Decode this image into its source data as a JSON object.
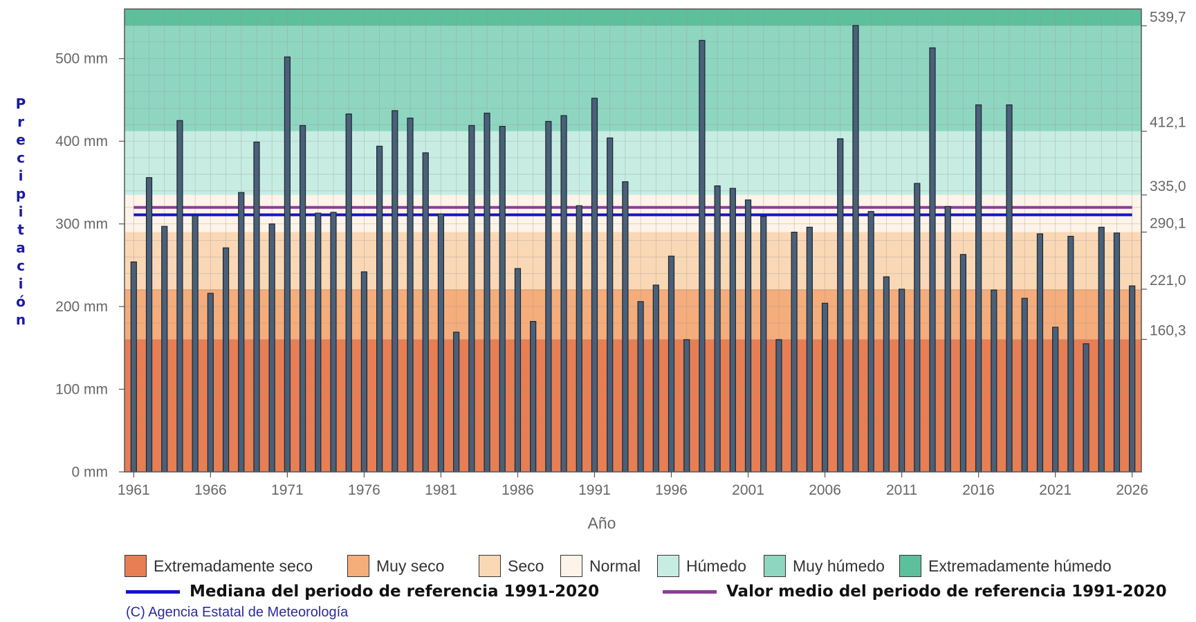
{
  "chart_data": {
    "type": "bar",
    "xlabel": "Año",
    "ylabel": "Precipitación",
    "ylim": [
      0,
      560
    ],
    "xlim": [
      1960.4,
      2026.6
    ],
    "y_ticks": [
      0,
      100,
      200,
      300,
      400,
      500
    ],
    "y_tick_labels": [
      "0 mm",
      "100 mm",
      "200 mm",
      "300 mm",
      "400 mm",
      "500 mm"
    ],
    "x_ticks": [
      1961,
      1966,
      1971,
      1976,
      1981,
      1986,
      1991,
      1996,
      2001,
      2006,
      2011,
      2016,
      2021,
      2026
    ],
    "x_tick_labels": [
      "1961",
      "1966",
      "1971",
      "1976",
      "1981",
      "1986",
      "1991",
      "1996",
      "2001",
      "2006",
      "2011",
      "2016",
      "2021",
      "2026"
    ],
    "right_axis_values": [
      160.3,
      221.0,
      290.1,
      335.0,
      412.1,
      539.7
    ],
    "right_axis_labels": [
      "160,3",
      "221,0",
      "290,1",
      "335,0",
      "412,1",
      "539,7"
    ],
    "categories": [
      1961,
      1962,
      1963,
      1964,
      1965,
      1966,
      1967,
      1968,
      1969,
      1970,
      1971,
      1972,
      1973,
      1974,
      1975,
      1976,
      1977,
      1978,
      1979,
      1980,
      1981,
      1982,
      1983,
      1984,
      1985,
      1986,
      1987,
      1988,
      1989,
      1990,
      1991,
      1992,
      1993,
      1994,
      1995,
      1996,
      1997,
      1998,
      1999,
      2000,
      2001,
      2002,
      2003,
      2004,
      2005,
      2006,
      2007,
      2008,
      2009,
      2010,
      2011,
      2012,
      2013,
      2014,
      2015,
      2016,
      2017,
      2018,
      2019,
      2020,
      2021,
      2022,
      2023,
      2024,
      2025,
      2026
    ],
    "values": [
      254,
      356,
      297,
      425,
      310,
      216,
      271,
      338,
      399,
      300,
      502,
      419,
      313,
      314,
      433,
      242,
      394,
      437,
      428,
      386,
      312,
      169,
      419,
      434,
      418,
      246,
      182,
      424,
      431,
      322,
      452,
      404,
      351,
      206,
      226,
      261,
      160,
      522,
      346,
      343,
      329,
      309,
      160,
      290,
      296,
      204,
      403,
      540,
      315,
      236,
      221,
      349,
      513,
      321,
      263,
      444,
      220,
      444,
      210,
      288,
      175,
      285,
      155,
      296,
      289,
      225
    ],
    "bands": [
      {
        "name": "Extremadamente seco",
        "from": 0,
        "to": 160.3,
        "color": "#e87e54"
      },
      {
        "name": "Muy seco",
        "from": 160.3,
        "to": 221.0,
        "color": "#f5ad7b"
      },
      {
        "name": "Seco",
        "from": 221.0,
        "to": 290.1,
        "color": "#fad8b5"
      },
      {
        "name": "Normal",
        "from": 290.1,
        "to": 335.0,
        "color": "#fdf3e8"
      },
      {
        "name": "Húmedo",
        "from": 335.0,
        "to": 412.1,
        "color": "#c7ede3"
      },
      {
        "name": "Muy húmedo",
        "from": 412.1,
        "to": 539.7,
        "color": "#8fd6c1"
      },
      {
        "name": "Extremadamente húmedo",
        "from": 539.7,
        "to": 560,
        "color": "#5dbf9b"
      }
    ],
    "reference_lines": [
      {
        "name": "Mediana del periodo de referencia 1991-2020",
        "value": 311,
        "color": "#1414c8"
      },
      {
        "name": "Valor medio del periodo de referencia 1991-2020",
        "value": 320,
        "color": "#8a3e9a"
      }
    ],
    "bar_color": "#4a6078",
    "grid": true,
    "legend_position": "bottom"
  },
  "credit": "(C) Agencia Estatal de Meteorología"
}
